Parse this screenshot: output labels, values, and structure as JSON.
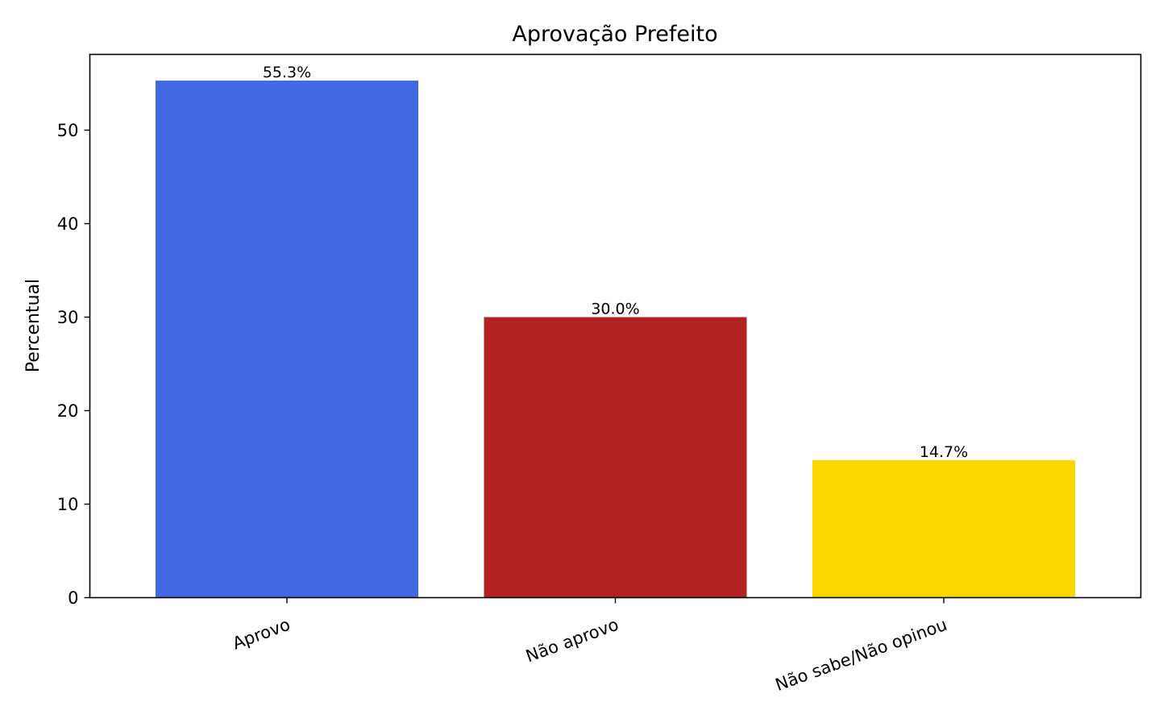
{
  "chart_data": {
    "type": "bar",
    "title": "Aprovação Prefeito",
    "xlabel": "",
    "ylabel": "Percentual",
    "categories": [
      "Aprovo",
      "Não aprovo",
      "Não sabe/Não opinou"
    ],
    "values": [
      55.3,
      30.0,
      14.7
    ],
    "value_labels": [
      "55.3%",
      "30.0%",
      "14.7%"
    ],
    "colors": [
      "#4169e1",
      "#b22222",
      "#ffd700"
    ],
    "ylim": [
      0,
      58.1
    ],
    "yticks": [
      0,
      10,
      20,
      30,
      40,
      50
    ],
    "grid": false,
    "legend": "none"
  }
}
